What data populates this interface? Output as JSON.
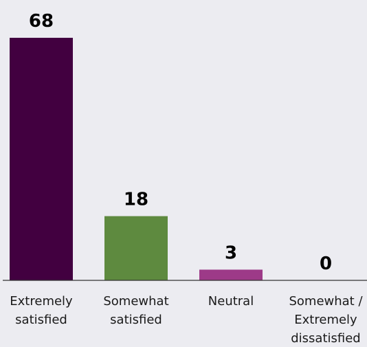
{
  "chart_data": {
    "type": "bar",
    "categories": [
      [
        "Extremely",
        "satisfied"
      ],
      [
        "Somewhat",
        "satisfied"
      ],
      [
        "Neutral"
      ],
      [
        "Somewhat /",
        "Extremely",
        "dissatisfied"
      ]
    ],
    "values": [
      68,
      18,
      3,
      0
    ],
    "bar_colors": [
      "#420040",
      "#5e8a3f",
      "#9d3a88",
      "#9d3a88"
    ],
    "title": "",
    "xlabel": "",
    "ylabel": "",
    "ylim": [
      0,
      68
    ],
    "grid": false,
    "legend": "none"
  }
}
